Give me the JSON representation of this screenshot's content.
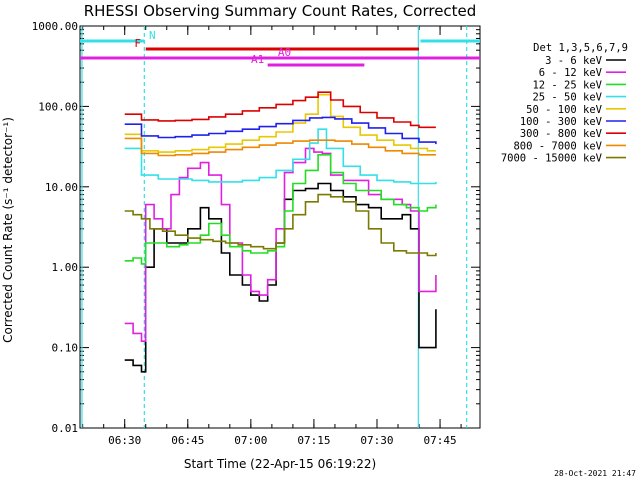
{
  "chart_data": {
    "type": "line",
    "title": "RHESSI Observing Summary Count Rates, Corrected",
    "xlabel": "Start Time (22-Apr-15 06:19:22)",
    "ylabel": "Corrected Count Rate (s⁻¹ detector⁻¹)",
    "y_scale": "log",
    "ylim": [
      0.01,
      1000
    ],
    "xlim": [
      "06:19:22",
      "07:54:30"
    ],
    "x_ticks": [
      "06:30",
      "06:45",
      "07:00",
      "07:15",
      "07:30",
      "07:45"
    ],
    "y_ticks": [
      "0.01",
      "0.10",
      "1.00",
      "10.00",
      "100.00",
      "1000.00"
    ],
    "legend_title": "Det 1,3,5,6,7,9",
    "legend_position": "right",
    "timestamp": "28-Oct-2021 21:47",
    "flags": [
      {
        "label": "N",
        "color": "#33e0e8",
        "segments": [
          [
            "06:19:22",
            "06:34:40"
          ],
          [
            "07:40:20",
            "07:54:30"
          ]
        ]
      },
      {
        "label": "F",
        "color": "#dd0000",
        "segments": [
          [
            "06:35:00",
            "07:40:00"
          ]
        ]
      },
      {
        "label": "A0",
        "color": "#e020e0",
        "segments": [
          [
            "06:19:22",
            "07:54:30"
          ]
        ]
      },
      {
        "label": "A1",
        "color": "#e020e0",
        "segments": [
          [
            "07:04:00",
            "07:27:00"
          ]
        ]
      }
    ],
    "vertical_lines": [
      {
        "time": "06:19:50",
        "color": "#33e0e8",
        "style": "solid"
      },
      {
        "time": "06:34:40",
        "color": "#33e0e8",
        "style": "dashed"
      },
      {
        "time": "07:39:50",
        "color": "#33e0e8",
        "style": "solid"
      },
      {
        "time": "07:51:20",
        "color": "#33e0e8",
        "style": "dashed"
      }
    ],
    "series": [
      {
        "name": "3 - 6 keV",
        "color": "#000000",
        "t": [
          "06:30",
          "06:32",
          "06:34",
          "06:35",
          "06:37",
          "06:40",
          "06:43",
          "06:45",
          "06:48",
          "06:50",
          "06:53",
          "06:55",
          "06:58",
          "07:00",
          "07:02",
          "07:04",
          "07:06",
          "07:08",
          "07:10",
          "07:13",
          "07:16",
          "07:19",
          "07:22",
          "07:25",
          "07:28",
          "07:31",
          "07:34",
          "07:36",
          "07:38",
          "07:40",
          "07:42",
          "07:44"
        ],
        "v": [
          0.07,
          0.06,
          0.05,
          1.0,
          3.0,
          2.0,
          2.0,
          3.0,
          5.5,
          4.0,
          1.5,
          0.8,
          0.6,
          0.45,
          0.38,
          0.6,
          2.0,
          7.0,
          9.0,
          9.5,
          11.0,
          9.0,
          7.5,
          6.0,
          5.5,
          4.0,
          4.0,
          4.5,
          3.0,
          0.1,
          0.1,
          0.3
        ]
      },
      {
        "name": "6 - 12 keV",
        "color": "#e020e0",
        "t": [
          "06:30",
          "06:32",
          "06:34",
          "06:35",
          "06:37",
          "06:39",
          "06:41",
          "06:43",
          "06:45",
          "06:48",
          "06:50",
          "06:53",
          "06:55",
          "06:58",
          "07:00",
          "07:02",
          "07:04",
          "07:06",
          "07:08",
          "07:10",
          "07:13",
          "07:15",
          "07:17",
          "07:19",
          "07:22",
          "07:25",
          "07:28",
          "07:31",
          "07:34",
          "07:36",
          "07:38",
          "07:40",
          "07:42",
          "07:44"
        ],
        "v": [
          0.2,
          0.15,
          0.12,
          6.0,
          4.0,
          3.0,
          8.0,
          13.0,
          17.0,
          20.0,
          14.0,
          6.0,
          2.0,
          0.8,
          0.5,
          0.45,
          0.7,
          3.0,
          15.0,
          20.0,
          30.0,
          27.0,
          26.0,
          14.0,
          12.0,
          12.0,
          8.0,
          7.0,
          7.0,
          6.0,
          5.0,
          0.5,
          0.5,
          0.8
        ]
      },
      {
        "name": "12 - 25 keV",
        "color": "#22dd22",
        "t": [
          "06:30",
          "06:32",
          "06:34",
          "06:35",
          "06:37",
          "06:40",
          "06:43",
          "06:45",
          "06:48",
          "06:50",
          "06:53",
          "06:55",
          "06:58",
          "07:00",
          "07:02",
          "07:04",
          "07:06",
          "07:08",
          "07:10",
          "07:13",
          "07:16",
          "07:19",
          "07:22",
          "07:25",
          "07:28",
          "07:31",
          "07:34",
          "07:37",
          "07:40",
          "07:42",
          "07:44"
        ],
        "v": [
          1.2,
          1.3,
          1.1,
          2.0,
          2.0,
          1.8,
          1.9,
          2.0,
          2.5,
          3.5,
          2.5,
          1.8,
          1.6,
          1.5,
          1.5,
          1.6,
          1.8,
          5.0,
          11.0,
          16.0,
          25.0,
          15.0,
          11.0,
          9.0,
          9.0,
          7.0,
          6.0,
          5.5,
          5.0,
          5.5,
          6.0
        ]
      },
      {
        "name": "25 - 50 keV",
        "color": "#33e0e8",
        "t": [
          "06:30",
          "06:34",
          "06:38",
          "06:42",
          "06:46",
          "06:50",
          "06:54",
          "06:58",
          "07:02",
          "07:06",
          "07:10",
          "07:14",
          "07:16",
          "07:18",
          "07:22",
          "07:26",
          "07:30",
          "07:34",
          "07:38",
          "07:42",
          "07:44"
        ],
        "v": [
          30.0,
          14.0,
          12.5,
          12.5,
          12.0,
          11.5,
          11.5,
          12.0,
          13.0,
          16.0,
          22.0,
          35.0,
          52.0,
          30.0,
          18.0,
          14.0,
          12.0,
          11.5,
          11.0,
          11.0,
          11.5
        ]
      },
      {
        "name": "50 - 100 keV",
        "color": "#e8c800",
        "t": [
          "06:30",
          "06:34",
          "06:38",
          "06:42",
          "06:46",
          "06:50",
          "06:54",
          "06:58",
          "07:02",
          "07:06",
          "07:10",
          "07:13",
          "07:16",
          "07:19",
          "07:22",
          "07:26",
          "07:30",
          "07:34",
          "07:38",
          "07:42",
          "07:44"
        ],
        "v": [
          45.0,
          28.0,
          27.0,
          28.0,
          29.0,
          31.0,
          34.0,
          38.0,
          42.0,
          48.0,
          62.0,
          80.0,
          140.0,
          75.0,
          55.0,
          44.0,
          38.0,
          33.0,
          30.0,
          28.0,
          28.0
        ]
      },
      {
        "name": "100 - 300 keV",
        "color": "#2020ee",
        "t": [
          "06:30",
          "06:34",
          "06:38",
          "06:42",
          "06:46",
          "06:50",
          "06:54",
          "06:58",
          "07:02",
          "07:06",
          "07:10",
          "07:14",
          "07:17",
          "07:20",
          "07:24",
          "07:28",
          "07:32",
          "07:36",
          "07:40",
          "07:44"
        ],
        "v": [
          60.0,
          43.0,
          41.0,
          42.0,
          44.0,
          46.0,
          49.0,
          52.0,
          56.0,
          61.0,
          67.0,
          72.0,
          73.0,
          70.0,
          62.0,
          54.0,
          46.0,
          40.0,
          36.0,
          34.0
        ]
      },
      {
        "name": "300 - 800 keV",
        "color": "#dd0000",
        "t": [
          "06:30",
          "06:34",
          "06:38",
          "06:42",
          "06:46",
          "06:50",
          "06:54",
          "06:58",
          "07:02",
          "07:06",
          "07:10",
          "07:13",
          "07:16",
          "07:19",
          "07:22",
          "07:26",
          "07:30",
          "07:34",
          "07:38",
          "07:40",
          "07:44"
        ],
        "v": [
          80.0,
          68.0,
          66.0,
          67.0,
          69.0,
          74.0,
          80.0,
          88.0,
          96.0,
          106.0,
          118.0,
          130.0,
          150.0,
          120.0,
          100.0,
          84.0,
          72.0,
          64.0,
          58.0,
          55.0,
          55.0
        ]
      },
      {
        "name": "800 - 7000 keV",
        "color": "#ee8800",
        "t": [
          "06:30",
          "06:34",
          "06:38",
          "06:42",
          "06:46",
          "06:50",
          "06:54",
          "06:58",
          "07:02",
          "07:06",
          "07:10",
          "07:14",
          "07:17",
          "07:20",
          "07:24",
          "07:28",
          "07:32",
          "07:36",
          "07:40",
          "07:44"
        ],
        "v": [
          40.0,
          26.0,
          24.5,
          25.0,
          26.0,
          27.0,
          29.0,
          31.0,
          33.0,
          35.0,
          37.0,
          38.0,
          38.0,
          37.0,
          34.0,
          31.0,
          28.0,
          26.0,
          25.0,
          25.0
        ]
      },
      {
        "name": "7000 - 15000 keV",
        "color": "#7a7a00",
        "t": [
          "06:30",
          "06:32",
          "06:34",
          "06:36",
          "06:39",
          "06:42",
          "06:45",
          "06:48",
          "06:51",
          "06:54",
          "06:57",
          "07:00",
          "07:03",
          "07:06",
          "07:08",
          "07:10",
          "07:13",
          "07:16",
          "07:19",
          "07:22",
          "07:25",
          "07:28",
          "07:31",
          "07:34",
          "07:37",
          "07:40",
          "07:42",
          "07:44"
        ],
        "v": [
          5.0,
          4.5,
          4.0,
          3.0,
          2.8,
          2.5,
          2.3,
          2.2,
          2.1,
          2.0,
          1.9,
          1.8,
          1.7,
          2.0,
          3.0,
          4.5,
          6.5,
          8.0,
          7.5,
          6.5,
          5.0,
          3.0,
          2.0,
          1.6,
          1.5,
          1.5,
          1.4,
          1.5
        ]
      }
    ]
  }
}
